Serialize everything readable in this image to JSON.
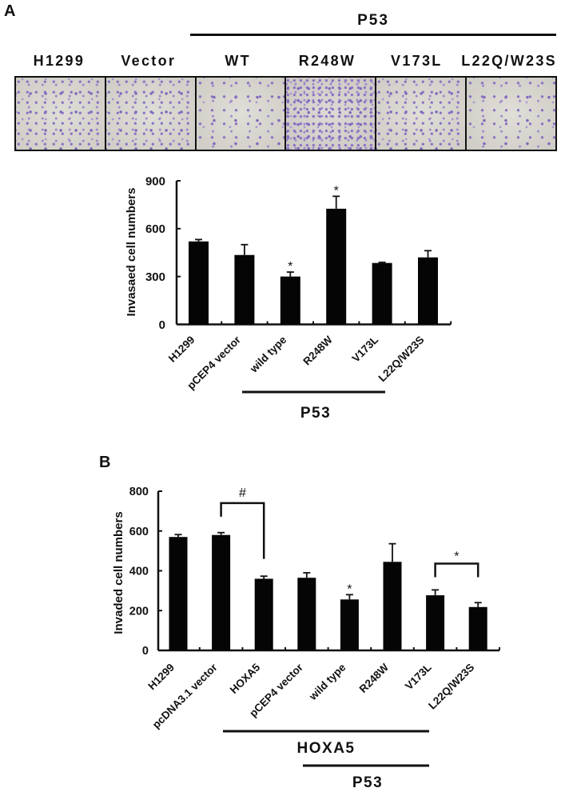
{
  "panel_a": {
    "letter": "A",
    "group_label": "P53",
    "micrographs": [
      {
        "label": "H1299"
      },
      {
        "label": "Vector"
      },
      {
        "label": "WT"
      },
      {
        "label": "R248W"
      },
      {
        "label": "V173L"
      },
      {
        "label": "L22Q/W23S"
      }
    ]
  },
  "panel_b": {
    "letter": "B"
  },
  "chart_data": [
    {
      "panel": "A",
      "type": "bar",
      "title": "",
      "xlabel": "",
      "ylabel": "Invasaed cell numbers",
      "categories": [
        "H1299",
        "pCEP4 vector",
        "wild type",
        "R248W",
        "V173L",
        "L22Q/W23S"
      ],
      "values": [
        520,
        435,
        300,
        725,
        385,
        420
      ],
      "errors": [
        12,
        65,
        28,
        78,
        4,
        42
      ],
      "significance": [
        "",
        "",
        "*",
        "*",
        "",
        ""
      ],
      "ylim": [
        0,
        900
      ],
      "yticks": [
        0,
        300,
        600,
        900
      ],
      "grid": false,
      "legend": null,
      "groups": [
        {
          "label": "P53",
          "categories": [
            "wild type",
            "R248W",
            "V173L",
            "L22Q/W23S"
          ]
        }
      ],
      "brackets": []
    },
    {
      "panel": "B",
      "type": "bar",
      "title": "",
      "xlabel": "",
      "ylabel": "Invaded cell numbers",
      "categories": [
        "H1299",
        "pcDNA3.1 vector",
        "HOXA5",
        "pCEP4 vector",
        "wild type",
        "R248W",
        "V173L",
        "L22Q/W23S"
      ],
      "values": [
        570,
        580,
        360,
        365,
        256,
        445,
        277,
        218
      ],
      "errors": [
        12,
        12,
        13,
        25,
        24,
        91,
        27,
        22
      ],
      "significance": [
        "",
        "",
        "",
        "",
        "*",
        "",
        "",
        ""
      ],
      "ylim": [
        0,
        800
      ],
      "yticks": [
        0,
        200,
        400,
        600,
        800
      ],
      "grid": false,
      "legend": null,
      "groups": [
        {
          "label": "HOXA5",
          "categories": [
            "HOXA5",
            "pCEP4 vector",
            "wild type",
            "R248W",
            "V173L",
            "L22Q/W23S"
          ]
        },
        {
          "label": "P53",
          "categories": [
            "wild type",
            "R248W",
            "V173L",
            "L22Q/W23S"
          ]
        }
      ],
      "brackets": [
        {
          "label": "#",
          "from": "pcDNA3.1 vector",
          "to": "HOXA5",
          "top": 740,
          "left_end": 672,
          "right_end": 460
        },
        {
          "label": "*",
          "from": "V173L",
          "to": "L22Q/W23S",
          "top": 436,
          "left_end": 368,
          "right_end": 368
        }
      ]
    }
  ]
}
